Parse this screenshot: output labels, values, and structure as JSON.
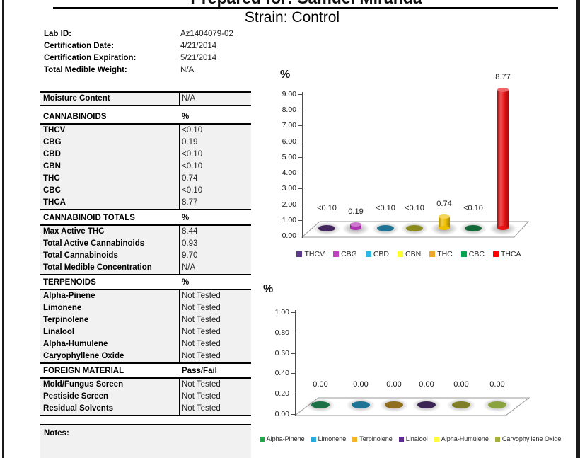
{
  "doc": {
    "title_clipped": "Prepared for: Samuel Miranda",
    "subtitle": "Strain: Control"
  },
  "info_fields": [
    {
      "label": "Lab ID:",
      "value": "Az1404079-02"
    },
    {
      "label": "Certification Date:",
      "value": "4/21/2014"
    },
    {
      "label": "Certification Expiration:",
      "value": "5/21/2014"
    },
    {
      "label": "Total Medible Weight:",
      "value": "N/A"
    }
  ],
  "tables": {
    "moisture": {
      "rows": [
        {
          "label": "Moisture Content",
          "value": "N/A"
        }
      ]
    },
    "cannabinoids": {
      "header": {
        "label": "CANNABINOIDS",
        "value": "%"
      },
      "rows": [
        {
          "label": "THCV",
          "value": "<0.10"
        },
        {
          "label": "CBG",
          "value": "0.19"
        },
        {
          "label": "CBD",
          "value": "<0.10"
        },
        {
          "label": "CBN",
          "value": "<0.10"
        },
        {
          "label": "THC",
          "value": "0.74"
        },
        {
          "label": "CBC",
          "value": "<0.10"
        },
        {
          "label": "THCA",
          "value": "8.77"
        }
      ]
    },
    "cannabinoid_totals": {
      "header": {
        "label": "CANNABINOID TOTALS",
        "value": "%"
      },
      "rows": [
        {
          "label": "Max Active THC",
          "value": "8.44"
        },
        {
          "label": "Total Active Cannabinoids",
          "value": "0.93"
        },
        {
          "label": "Total Cannabinoids",
          "value": "9.70"
        },
        {
          "label": "Total Medible Concentration",
          "value": "N/A"
        }
      ]
    },
    "terpenoids": {
      "header": {
        "label": "TERPENOIDS",
        "value": "%"
      },
      "rows": [
        {
          "label": "Alpha-Pinene",
          "value": "Not Tested"
        },
        {
          "label": "Limonene",
          "value": "Not Tested"
        },
        {
          "label": "Terpinolene",
          "value": "Not Tested"
        },
        {
          "label": "Linalool",
          "value": "Not Tested"
        },
        {
          "label": "Alpha-Humulene",
          "value": "Not Tested"
        },
        {
          "label": "Caryophyllene Oxide",
          "value": "Not Tested"
        }
      ]
    },
    "foreign_material": {
      "header": {
        "label": "FOREIGN MATERIAL",
        "value": "Pass/Fail"
      },
      "rows": [
        {
          "label": "Mold/Fungus Screen",
          "value": "Not Tested"
        },
        {
          "label": "Pestiside Screen",
          "value": "Not Tested"
        },
        {
          "label": "Residual Solvents",
          "value": "Not Tested"
        }
      ]
    },
    "notes": {
      "label": "Notes:"
    }
  },
  "colors": {
    "table_bg": "#f1f1f1",
    "border": "#000000",
    "page_edge": "#1a1a1a"
  },
  "chart_data": [
    {
      "type": "bar",
      "style": "3d-cylinder",
      "title": "",
      "xlabel": "",
      "ylabel": "%",
      "ylim": [
        0,
        9
      ],
      "ytick_step": 1,
      "grid": false,
      "legend_position": "bottom",
      "categories": [
        "THCV",
        "CBG",
        "CBD",
        "CBN",
        "THC",
        "CBC",
        "THCA"
      ],
      "values": [
        0.1,
        0.19,
        0.1,
        0.1,
        0.74,
        0.1,
        8.77
      ],
      "value_labels": [
        "<0.10",
        "0.19",
        "<0.10",
        "<0.10",
        "0.74",
        "<0.10",
        "8.77"
      ],
      "series_colors": [
        "#5b3c8c",
        "#c13fc1",
        "#2fb5ea",
        "#ffff33",
        "#eda52d",
        "#00a550",
        "#fe0000"
      ],
      "base_colors": [
        "#45275f",
        "#b431b4",
        "#1f7394",
        "#8a8a1e",
        "#edbf00",
        "#156938",
        "#e81416"
      ]
    },
    {
      "type": "bar",
      "style": "3d-cylinder",
      "title": "",
      "xlabel": "",
      "ylabel": "%",
      "ylim": [
        0,
        1
      ],
      "ytick_step": 0.2,
      "grid": false,
      "legend_position": "bottom",
      "categories": [
        "Alpha-Pinene",
        "Limonene",
        "Terpinolene",
        "Linalool",
        "Alpha-Humulene",
        "Caryophyllene Oxide"
      ],
      "values": [
        0,
        0,
        0,
        0,
        0,
        0
      ],
      "value_labels": [
        "0.00",
        "0.00",
        "0.00",
        "0.00",
        "0.00",
        "0.00"
      ],
      "series_colors": [
        "#21a84f",
        "#29abe2",
        "#f2b52a",
        "#5c2d8f",
        "#fdfd3d",
        "#a6b03c"
      ],
      "base_colors": [
        "#1d7044",
        "#1f7394",
        "#8f6e20",
        "#3b2453",
        "#7f7f28",
        "#8ba33e"
      ]
    }
  ]
}
